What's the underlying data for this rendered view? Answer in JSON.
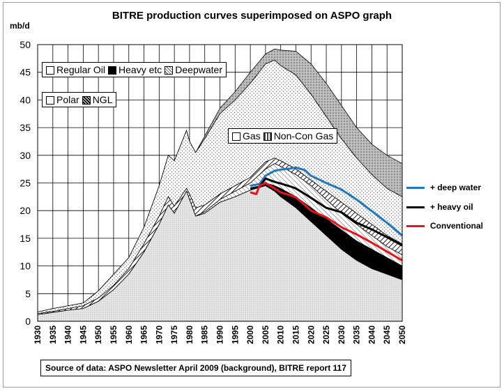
{
  "chart_data": {
    "type": "area",
    "title": "BITRE production curves superimposed on ASPO graph",
    "ylabel": "mb/d",
    "xlabel": "",
    "ylim": [
      0,
      50
    ],
    "xlim": [
      1930,
      2050
    ],
    "yticks": [
      0,
      5,
      10,
      15,
      20,
      25,
      30,
      35,
      40,
      45,
      50
    ],
    "xticks": [
      1930,
      1935,
      1940,
      1945,
      1950,
      1955,
      1960,
      1965,
      1970,
      1975,
      1980,
      1985,
      1990,
      1995,
      2000,
      2005,
      2010,
      2015,
      2020,
      2025,
      2030,
      2035,
      2040,
      2045,
      2050
    ],
    "grid": "vertical and horizontal",
    "background_legend": {
      "row1": [
        "Regular Oil",
        "Heavy etc",
        "Deepwater"
      ],
      "row2": [
        "Polar",
        "NGL"
      ],
      "row3": [
        "Gas",
        "Non-Con Gas"
      ]
    },
    "background_stack_top": {
      "x": [
        1930,
        1935,
        1940,
        1945,
        1950,
        1955,
        1960,
        1965,
        1970,
        1973,
        1975,
        1979,
        1980,
        1982,
        1985,
        1990,
        1995,
        2000,
        2005,
        2008,
        2010,
        2015,
        2020,
        2025,
        2030,
        2035,
        2040,
        2045,
        2050
      ],
      "regular_oil": [
        1.2,
        1.6,
        2.0,
        2.3,
        3.6,
        5.7,
        8.5,
        12.5,
        17.5,
        21.0,
        19.5,
        23.5,
        22.0,
        19.0,
        19.5,
        21.5,
        22.5,
        23.7,
        24.5,
        23.5,
        22.5,
        20.5,
        18.0,
        15.5,
        13.0,
        11.0,
        9.5,
        8.5,
        7.5
      ],
      "heavy_etc": [
        1.2,
        1.6,
        2.0,
        2.3,
        3.6,
        5.7,
        8.5,
        12.5,
        17.5,
        21.0,
        19.5,
        23.5,
        22.0,
        19.0,
        19.5,
        21.5,
        22.5,
        23.7,
        25.0,
        24.5,
        24.0,
        22.5,
        20.5,
        18.5,
        16.5,
        14.5,
        13.0,
        11.5,
        10.0
      ],
      "deepwater": [
        1.2,
        1.6,
        2.0,
        2.3,
        3.6,
        5.7,
        8.5,
        12.5,
        17.5,
        21.0,
        19.5,
        23.5,
        22.0,
        19.0,
        19.8,
        22.0,
        23.5,
        25.0,
        27.5,
        28.5,
        28.0,
        26.5,
        24.5,
        22.0,
        19.5,
        17.5,
        15.5,
        13.5,
        12.0
      ],
      "polar_ngl": [
        1.4,
        1.8,
        2.3,
        2.8,
        4.2,
        6.5,
        9.5,
        14.0,
        19.0,
        22.5,
        20.8,
        24.0,
        23.0,
        20.5,
        21.0,
        23.0,
        24.5,
        26.0,
        28.8,
        29.5,
        29.0,
        27.5,
        25.5,
        23.5,
        21.5,
        19.5,
        17.5,
        15.5,
        14.0
      ],
      "gas": [
        1.7,
        2.3,
        2.8,
        3.3,
        5.5,
        8.5,
        11.5,
        17.0,
        24.5,
        30.0,
        29.0,
        34.5,
        32.5,
        30.5,
        33.0,
        37.5,
        40.0,
        43.0,
        46.5,
        47.2,
        46.2,
        44.5,
        41.0,
        37.0,
        33.0,
        29.5,
        26.5,
        24.0,
        22.5
      ],
      "non_con_gas": [
        1.7,
        2.3,
        2.8,
        3.3,
        5.5,
        8.5,
        11.5,
        17.0,
        24.5,
        30.0,
        29.0,
        34.5,
        32.5,
        30.5,
        33.5,
        38.5,
        41.5,
        45.0,
        48.3,
        49.2,
        49.0,
        48.8,
        46.5,
        43.0,
        39.0,
        35.0,
        32.0,
        30.0,
        28.5
      ]
    },
    "series": [
      {
        "name": "+ deep water",
        "color": "#1f77c4",
        "x": [
          2000,
          2003,
          2005,
          2008,
          2010,
          2013,
          2015,
          2018,
          2020,
          2025,
          2030,
          2035,
          2040,
          2045,
          2050
        ],
        "y": [
          24.5,
          24.8,
          26.3,
          27.2,
          27.4,
          27.6,
          27.8,
          27.3,
          26.3,
          25.0,
          23.8,
          22.0,
          19.9,
          17.8,
          15.5
        ]
      },
      {
        "name": "+ heavy oil",
        "color": "#000000",
        "x": [
          2000,
          2003,
          2005,
          2008,
          2010,
          2013,
          2015,
          2018,
          2020,
          2025,
          2030,
          2035,
          2040,
          2045,
          2050
        ],
        "y": [
          24.0,
          24.3,
          25.8,
          25.2,
          24.9,
          24.4,
          24.0,
          23.0,
          22.3,
          20.5,
          19.7,
          17.8,
          16.6,
          15.2,
          13.7
        ]
      },
      {
        "name": "Conventional",
        "color": "#e8131b",
        "x": [
          2000,
          2002,
          2003,
          2005,
          2008,
          2010,
          2013,
          2015,
          2018,
          2020,
          2025,
          2030,
          2035,
          2040,
          2045,
          2050
        ],
        "y": [
          23.3,
          23.0,
          24.5,
          25.0,
          24.0,
          23.3,
          22.8,
          22.4,
          21.0,
          20.0,
          18.8,
          17.0,
          15.7,
          14.2,
          12.6,
          11.0
        ]
      }
    ],
    "source": "Source of data:  ASPO Newsletter April 2009 (background), BITRE report 117"
  }
}
